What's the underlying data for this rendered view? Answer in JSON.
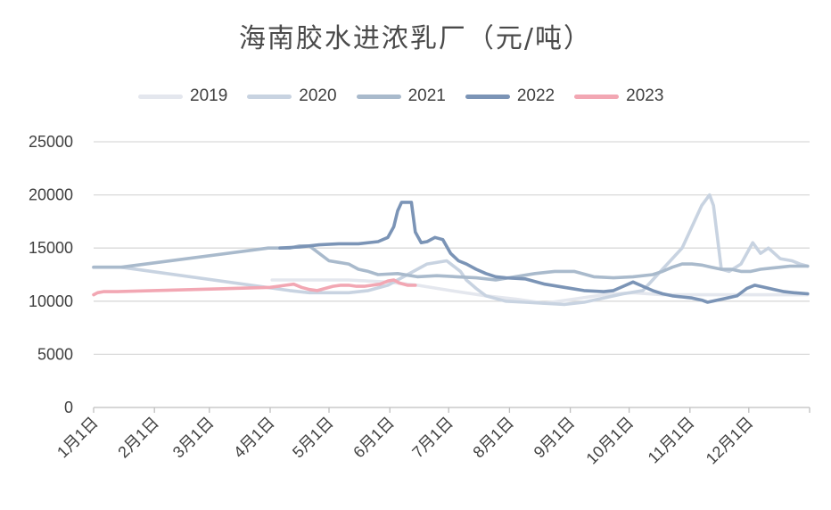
{
  "chart_data": {
    "type": "line",
    "title": "海南胶水进浓乳厂（元/吨）",
    "xlabel": "",
    "ylabel": "",
    "ylim": [
      0,
      25000
    ],
    "yticks": [
      0,
      5000,
      10000,
      15000,
      20000,
      25000
    ],
    "xticks": [
      "1月1日",
      "2月1日",
      "3月1日",
      "4月1日",
      "5月1日",
      "6月1日",
      "7月1日",
      "8月1日",
      "9月1日",
      "10月1日",
      "11月1日",
      "12月1日"
    ],
    "xlim_days": [
      0,
      365
    ],
    "grid": "horizontal",
    "legend_position": "top",
    "series": [
      {
        "name": "2019",
        "color": "#e4e7ee",
        "points": [
          [
            91,
            12000
          ],
          [
            110,
            12000
          ],
          [
            130,
            12000
          ],
          [
            150,
            11800
          ],
          [
            165,
            11500
          ],
          [
            182,
            11000
          ],
          [
            200,
            10500
          ],
          [
            215,
            10200
          ],
          [
            230,
            9800
          ],
          [
            245,
            10200
          ],
          [
            260,
            10600
          ],
          [
            275,
            10800
          ],
          [
            290,
            10600
          ],
          [
            305,
            10600
          ],
          [
            320,
            10600
          ],
          [
            335,
            10600
          ],
          [
            350,
            10600
          ],
          [
            364,
            10600
          ]
        ]
      },
      {
        "name": "2020",
        "color": "#c8d3e1",
        "points": [
          [
            0,
            13200
          ],
          [
            7,
            13200
          ],
          [
            14,
            13200
          ],
          [
            100,
            11000
          ],
          [
            110,
            10800
          ],
          [
            120,
            10800
          ],
          [
            130,
            10800
          ],
          [
            140,
            11000
          ],
          [
            150,
            11500
          ],
          [
            160,
            12500
          ],
          [
            170,
            13500
          ],
          [
            180,
            13800
          ],
          [
            187,
            12800
          ],
          [
            190,
            12000
          ],
          [
            195,
            11200
          ],
          [
            200,
            10500
          ],
          [
            210,
            10000
          ],
          [
            220,
            9900
          ],
          [
            230,
            9800
          ],
          [
            240,
            9700
          ],
          [
            250,
            9900
          ],
          [
            260,
            10300
          ],
          [
            270,
            10700
          ],
          [
            280,
            11000
          ],
          [
            285,
            12000
          ],
          [
            290,
            13000
          ],
          [
            295,
            14000
          ],
          [
            300,
            15000
          ],
          [
            305,
            17000
          ],
          [
            310,
            19000
          ],
          [
            314,
            20000
          ],
          [
            316,
            19000
          ],
          [
            318,
            16000
          ],
          [
            320,
            13000
          ],
          [
            324,
            12800
          ],
          [
            330,
            13500
          ],
          [
            333,
            14500
          ],
          [
            336,
            15500
          ],
          [
            340,
            14500
          ],
          [
            344,
            15000
          ],
          [
            350,
            14000
          ],
          [
            356,
            13800
          ],
          [
            360,
            13500
          ],
          [
            364,
            13300
          ]
        ]
      },
      {
        "name": "2021",
        "color": "#a9bacc",
        "points": [
          [
            0,
            13200
          ],
          [
            7,
            13200
          ],
          [
            14,
            13200
          ],
          [
            89,
            15000
          ],
          [
            100,
            15000
          ],
          [
            105,
            15200
          ],
          [
            110,
            15200
          ],
          [
            115,
            14500
          ],
          [
            120,
            13800
          ],
          [
            130,
            13500
          ],
          [
            135,
            13000
          ],
          [
            140,
            12800
          ],
          [
            145,
            12500
          ],
          [
            155,
            12600
          ],
          [
            165,
            12300
          ],
          [
            175,
            12400
          ],
          [
            185,
            12300
          ],
          [
            195,
            12200
          ],
          [
            205,
            12000
          ],
          [
            215,
            12300
          ],
          [
            225,
            12600
          ],
          [
            235,
            12800
          ],
          [
            245,
            12800
          ],
          [
            255,
            12300
          ],
          [
            265,
            12200
          ],
          [
            275,
            12300
          ],
          [
            285,
            12500
          ],
          [
            290,
            12800
          ],
          [
            295,
            13200
          ],
          [
            300,
            13500
          ],
          [
            305,
            13500
          ],
          [
            310,
            13400
          ],
          [
            315,
            13200
          ],
          [
            320,
            13000
          ],
          [
            325,
            13000
          ],
          [
            330,
            12800
          ],
          [
            335,
            12800
          ],
          [
            340,
            13000
          ],
          [
            345,
            13100
          ],
          [
            350,
            13200
          ],
          [
            355,
            13300
          ],
          [
            360,
            13300
          ],
          [
            364,
            13300
          ]
        ]
      },
      {
        "name": "2022",
        "color": "#7b94b6",
        "points": [
          [
            95,
            15000
          ],
          [
            105,
            15100
          ],
          [
            115,
            15300
          ],
          [
            125,
            15400
          ],
          [
            135,
            15400
          ],
          [
            145,
            15600
          ],
          [
            150,
            16000
          ],
          [
            153,
            17000
          ],
          [
            155,
            18500
          ],
          [
            157,
            19300
          ],
          [
            162,
            19300
          ],
          [
            164,
            16500
          ],
          [
            167,
            15500
          ],
          [
            170,
            15600
          ],
          [
            174,
            16000
          ],
          [
            178,
            15800
          ],
          [
            182,
            14500
          ],
          [
            186,
            13800
          ],
          [
            190,
            13500
          ],
          [
            195,
            13000
          ],
          [
            200,
            12600
          ],
          [
            205,
            12300
          ],
          [
            210,
            12200
          ],
          [
            220,
            12100
          ],
          [
            230,
            11600
          ],
          [
            240,
            11300
          ],
          [
            250,
            11000
          ],
          [
            260,
            10900
          ],
          [
            265,
            11000
          ],
          [
            270,
            11400
          ],
          [
            275,
            11800
          ],
          [
            280,
            11400
          ],
          [
            285,
            11000
          ],
          [
            290,
            10700
          ],
          [
            295,
            10500
          ],
          [
            300,
            10400
          ],
          [
            305,
            10300
          ],
          [
            310,
            10100
          ],
          [
            313,
            9900
          ],
          [
            318,
            10100
          ],
          [
            323,
            10300
          ],
          [
            328,
            10500
          ],
          [
            333,
            11200
          ],
          [
            337,
            11500
          ],
          [
            342,
            11300
          ],
          [
            347,
            11100
          ],
          [
            352,
            10900
          ],
          [
            357,
            10800
          ],
          [
            364,
            10700
          ]
        ]
      },
      {
        "name": "2023",
        "color": "#f2a7b3",
        "points": [
          [
            0,
            10600
          ],
          [
            2,
            10800
          ],
          [
            5,
            10900
          ],
          [
            8,
            10900
          ],
          [
            12,
            10900
          ],
          [
            90,
            11300
          ],
          [
            94,
            11400
          ],
          [
            98,
            11500
          ],
          [
            102,
            11600
          ],
          [
            106,
            11300
          ],
          [
            110,
            11100
          ],
          [
            114,
            11000
          ],
          [
            118,
            11200
          ],
          [
            122,
            11400
          ],
          [
            126,
            11500
          ],
          [
            130,
            11500
          ],
          [
            134,
            11400
          ],
          [
            138,
            11400
          ],
          [
            142,
            11500
          ],
          [
            146,
            11600
          ],
          [
            150,
            11900
          ],
          [
            153,
            12000
          ],
          [
            156,
            11700
          ],
          [
            160,
            11500
          ],
          [
            164,
            11500
          ]
        ]
      }
    ]
  }
}
